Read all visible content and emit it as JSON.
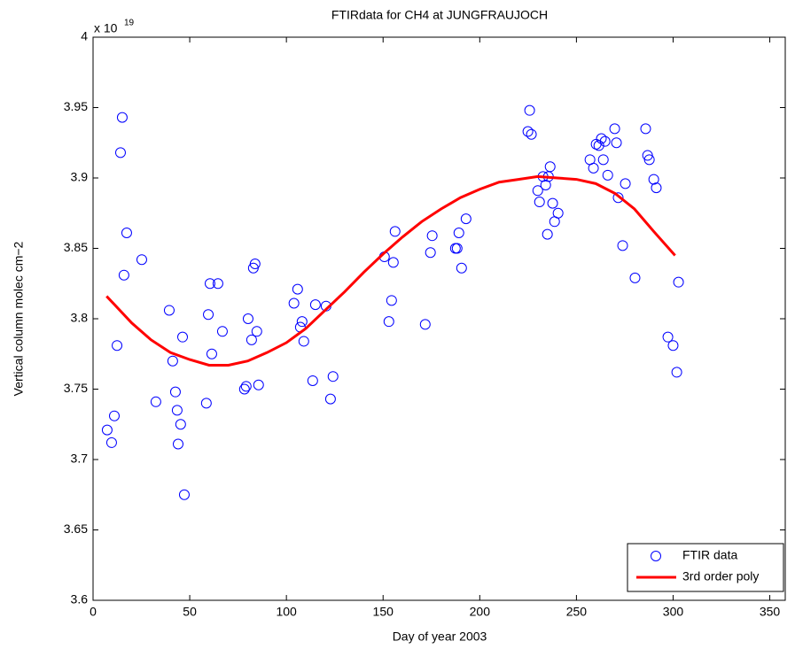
{
  "chart_data": {
    "type": "scatter",
    "title": "FTIRdata for CH4 at JUNGFRAUJOCH",
    "xlabel": "Day of year 2003",
    "ylabel": "Vertical column molec cm−2",
    "y_multiplier": "x 10",
    "y_exponent": "19",
    "xlim": [
      0,
      358
    ],
    "xticks": [
      0,
      50,
      100,
      150,
      200,
      250,
      300,
      350
    ],
    "ylim": [
      3.6,
      4
    ],
    "yticks": [
      3.6,
      3.65,
      3.7,
      3.75,
      3.8,
      3.85,
      3.9,
      3.95,
      4
    ],
    "legend": "lower right",
    "series": [
      {
        "name": "FTIR data",
        "type": "scatter",
        "color": "#0000ff",
        "x": [
          7.3,
          9.6,
          11.0,
          12.4,
          14.2,
          15.1,
          16.0,
          17.4,
          25.2,
          32.5,
          39.4,
          41.2,
          42.6,
          43.5,
          44.0,
          45.3,
          46.3,
          47.2,
          58.6,
          59.6,
          60.5,
          61.4,
          64.6,
          66.9,
          78.3,
          79.2,
          80.2,
          82.0,
          82.9,
          83.8,
          84.7,
          85.6,
          103.9,
          105.8,
          107.2,
          108.1,
          109.0,
          113.6,
          115.0,
          120.5,
          122.8,
          124.1,
          150.7,
          153.0,
          154.4,
          155.3,
          156.2,
          171.8,
          174.5,
          175.4,
          187.4,
          188.3,
          189.2,
          190.6,
          192.9,
          224.9,
          225.8,
          226.7,
          230.0,
          230.9,
          232.7,
          234.1,
          235.0,
          235.5,
          236.4,
          237.7,
          238.7,
          240.5,
          257.0,
          258.8,
          260.2,
          261.6,
          262.9,
          263.9,
          264.8,
          266.2,
          269.8,
          270.7,
          271.6,
          273.9,
          275.3,
          280.3,
          285.8,
          286.8,
          287.7,
          290.0,
          291.3,
          297.3,
          300.0,
          301.9,
          302.8
        ],
        "values": [
          3.721,
          3.712,
          3.731,
          3.781,
          3.918,
          3.943,
          3.831,
          3.861,
          3.842,
          3.741,
          3.806,
          3.77,
          3.748,
          3.735,
          3.711,
          3.725,
          3.787,
          3.675,
          3.74,
          3.803,
          3.825,
          3.775,
          3.825,
          3.791,
          3.75,
          3.752,
          3.8,
          3.785,
          3.836,
          3.839,
          3.791,
          3.753,
          3.811,
          3.821,
          3.794,
          3.798,
          3.784,
          3.756,
          3.81,
          3.809,
          3.743,
          3.759,
          3.844,
          3.798,
          3.813,
          3.84,
          3.862,
          3.796,
          3.847,
          3.859,
          3.85,
          3.85,
          3.861,
          3.836,
          3.871,
          3.933,
          3.948,
          3.931,
          3.891,
          3.883,
          3.901,
          3.895,
          3.86,
          3.901,
          3.908,
          3.882,
          3.869,
          3.875,
          3.913,
          3.907,
          3.924,
          3.923,
          3.928,
          3.913,
          3.926,
          3.902,
          3.935,
          3.925,
          3.886,
          3.852,
          3.896,
          3.829,
          3.935,
          3.916,
          3.913,
          3.899,
          3.893,
          3.787,
          3.781,
          3.762,
          3.826
        ]
      },
      {
        "name": "3rd order poly",
        "type": "line",
        "color": "#ff0000",
        "x": [
          7,
          20,
          30,
          40,
          50,
          60,
          70,
          80,
          90,
          100,
          110,
          120,
          130,
          140,
          150,
          160,
          170,
          180,
          190,
          200,
          210,
          220,
          230,
          240,
          250,
          260,
          270,
          280,
          290,
          301
        ],
        "values": [
          3.816,
          3.797,
          3.785,
          3.776,
          3.771,
          3.767,
          3.767,
          3.77,
          3.776,
          3.783,
          3.793,
          3.806,
          3.819,
          3.833,
          3.846,
          3.858,
          3.869,
          3.878,
          3.886,
          3.892,
          3.897,
          3.899,
          3.901,
          3.9,
          3.899,
          3.896,
          3.889,
          3.878,
          3.862,
          3.845
        ]
      }
    ]
  }
}
